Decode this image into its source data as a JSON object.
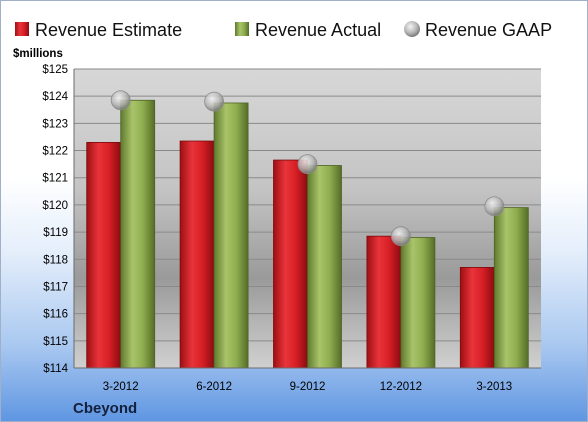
{
  "chart_data": {
    "type": "bar",
    "title": "",
    "ylabel": "$millions",
    "xlabel": "",
    "company": "Cbeyond",
    "categories": [
      "3-2012",
      "6-2012",
      "9-2012",
      "12-2012",
      "3-2013"
    ],
    "series": [
      {
        "name": "Revenue Estimate",
        "kind": "bar",
        "color": "#d81f26",
        "values": [
          122.3,
          122.35,
          121.65,
          118.85,
          117.7
        ]
      },
      {
        "name": "Revenue Actual",
        "kind": "bar",
        "color": "#8fae4f",
        "values": [
          123.85,
          123.75,
          121.45,
          118.8,
          119.9
        ]
      },
      {
        "name": "Revenue GAAP",
        "kind": "marker",
        "color": "#b8b8b8",
        "values": [
          123.85,
          123.8,
          121.5,
          118.85,
          119.95
        ]
      }
    ],
    "ylim": [
      114,
      125
    ],
    "yticks": [
      "$114",
      "$115",
      "$116",
      "$117",
      "$118",
      "$119",
      "$120",
      "$121",
      "$122",
      "$123",
      "$124",
      "$125"
    ],
    "grid": true,
    "legend": "top"
  }
}
